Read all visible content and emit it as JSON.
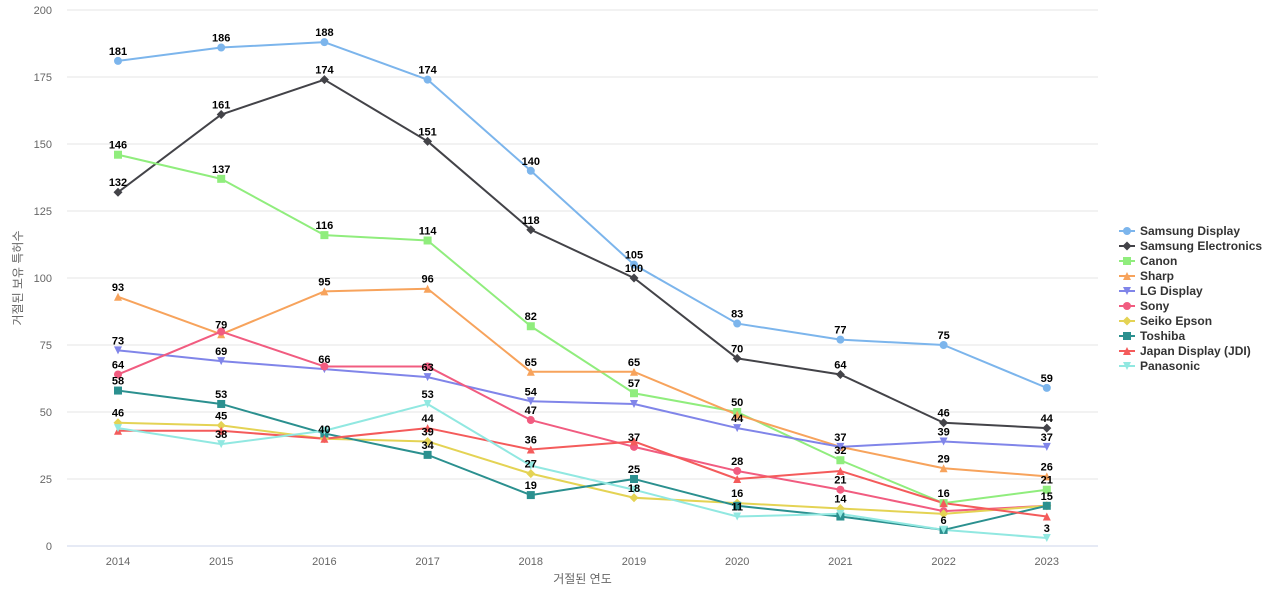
{
  "chart_data": {
    "type": "line",
    "title": "",
    "xlabel": "거절된 연도",
    "ylabel": "거절된 보유 특허수",
    "x": [
      "2014",
      "2015",
      "2016",
      "2017",
      "2018",
      "2019",
      "2020",
      "2021",
      "2022",
      "2023"
    ],
    "ylim": [
      0,
      200
    ],
    "yticks": [
      0,
      25,
      50,
      75,
      100,
      125,
      150,
      175,
      200
    ],
    "grid": true,
    "legend_position": "right",
    "series": [
      {
        "name": "Samsung Display",
        "color": "#7cb5ec",
        "marker": "circle",
        "values": [
          181,
          186,
          188,
          174,
          140,
          105,
          83,
          77,
          75,
          59
        ]
      },
      {
        "name": "Samsung Electronics",
        "color": "#434348",
        "marker": "diamond",
        "values": [
          132,
          161,
          174,
          151,
          118,
          100,
          70,
          64,
          46,
          44
        ]
      },
      {
        "name": "Canon",
        "color": "#90ed7d",
        "marker": "square",
        "values": [
          146,
          137,
          116,
          114,
          82,
          57,
          50,
          32,
          16,
          21
        ]
      },
      {
        "name": "Sharp",
        "color": "#f7a35c",
        "marker": "triangle",
        "values": [
          93,
          79,
          95,
          96,
          65,
          65,
          49,
          37,
          29,
          26
        ]
      },
      {
        "name": "LG Display",
        "color": "#8085e9",
        "marker": "triangle-down",
        "values": [
          73,
          69,
          66,
          63,
          54,
          53,
          44,
          37,
          39,
          37
        ]
      },
      {
        "name": "Sony",
        "color": "#f15c80",
        "marker": "circle",
        "values": [
          64,
          80,
          67,
          67,
          47,
          37,
          28,
          21,
          13,
          15
        ]
      },
      {
        "name": "Seiko Epson",
        "color": "#e4d354",
        "marker": "diamond",
        "values": [
          46,
          45,
          40,
          39,
          27,
          18,
          16,
          14,
          12,
          15
        ]
      },
      {
        "name": "Toshiba",
        "color": "#2b908f",
        "marker": "square",
        "values": [
          58,
          53,
          42,
          34,
          19,
          25,
          15,
          11,
          6,
          15
        ]
      },
      {
        "name": "Japan Display (JDI)",
        "color": "#f45b5b",
        "marker": "triangle",
        "values": [
          43,
          43,
          40,
          44,
          36,
          39,
          25,
          28,
          16,
          11
        ]
      },
      {
        "name": "Panasonic",
        "color": "#91e8e1",
        "marker": "triangle-down",
        "values": [
          44,
          38,
          43,
          53,
          30,
          21,
          11,
          12,
          6,
          3
        ]
      }
    ],
    "data_labels": [
      {
        "x": "2014",
        "text": "181",
        "value": 181
      },
      {
        "x": "2014",
        "text": "146",
        "value": 146
      },
      {
        "x": "2014",
        "text": "132",
        "value": 132
      },
      {
        "x": "2014",
        "text": "93",
        "value": 93
      },
      {
        "x": "2014",
        "text": "73",
        "value": 73
      },
      {
        "x": "2014",
        "text": "64",
        "value": 64
      },
      {
        "x": "2014",
        "text": "58",
        "value": 58
      },
      {
        "x": "2014",
        "text": "46",
        "value": 46
      },
      {
        "x": "2015",
        "text": "186",
        "value": 186
      },
      {
        "x": "2015",
        "text": "161",
        "value": 161
      },
      {
        "x": "2015",
        "text": "137",
        "value": 137
      },
      {
        "x": "2015",
        "text": "79",
        "value": 79
      },
      {
        "x": "2015",
        "text": "69",
        "value": 69
      },
      {
        "x": "2015",
        "text": "53",
        "value": 53
      },
      {
        "x": "2015",
        "text": "45",
        "value": 45
      },
      {
        "x": "2015",
        "text": "38",
        "value": 38
      },
      {
        "x": "2016",
        "text": "188",
        "value": 188
      },
      {
        "x": "2016",
        "text": "174",
        "value": 174
      },
      {
        "x": "2016",
        "text": "116",
        "value": 116
      },
      {
        "x": "2016",
        "text": "95",
        "value": 95
      },
      {
        "x": "2016",
        "text": "66",
        "value": 66
      },
      {
        "x": "2016",
        "text": "40",
        "value": 40
      },
      {
        "x": "2017",
        "text": "174",
        "value": 174
      },
      {
        "x": "2017",
        "text": "151",
        "value": 151
      },
      {
        "x": "2017",
        "text": "114",
        "value": 114
      },
      {
        "x": "2017",
        "text": "96",
        "value": 96
      },
      {
        "x": "2017",
        "text": "63",
        "value": 63
      },
      {
        "x": "2017",
        "text": "53",
        "value": 53
      },
      {
        "x": "2017",
        "text": "44",
        "value": 44
      },
      {
        "x": "2017",
        "text": "39",
        "value": 39
      },
      {
        "x": "2017",
        "text": "34",
        "value": 34
      },
      {
        "x": "2018",
        "text": "140",
        "value": 140
      },
      {
        "x": "2018",
        "text": "118",
        "value": 118
      },
      {
        "x": "2018",
        "text": "82",
        "value": 82
      },
      {
        "x": "2018",
        "text": "65",
        "value": 65
      },
      {
        "x": "2018",
        "text": "54",
        "value": 54
      },
      {
        "x": "2018",
        "text": "47",
        "value": 47
      },
      {
        "x": "2018",
        "text": "36",
        "value": 36
      },
      {
        "x": "2018",
        "text": "27",
        "value": 27
      },
      {
        "x": "2018",
        "text": "19",
        "value": 19
      },
      {
        "x": "2019",
        "text": "105",
        "value": 105
      },
      {
        "x": "2019",
        "text": "100",
        "value": 100
      },
      {
        "x": "2019",
        "text": "65",
        "value": 65
      },
      {
        "x": "2019",
        "text": "57",
        "value": 57
      },
      {
        "x": "2019",
        "text": "37",
        "value": 37
      },
      {
        "x": "2019",
        "text": "25",
        "value": 25
      },
      {
        "x": "2019",
        "text": "18",
        "value": 18
      },
      {
        "x": "2020",
        "text": "83",
        "value": 83
      },
      {
        "x": "2020",
        "text": "70",
        "value": 70
      },
      {
        "x": "2020",
        "text": "50",
        "value": 50
      },
      {
        "x": "2020",
        "text": "44",
        "value": 44
      },
      {
        "x": "2020",
        "text": "28",
        "value": 28
      },
      {
        "x": "2020",
        "text": "16",
        "value": 16
      },
      {
        "x": "2020",
        "text": "11",
        "value": 11
      },
      {
        "x": "2021",
        "text": "77",
        "value": 77
      },
      {
        "x": "2021",
        "text": "64",
        "value": 64
      },
      {
        "x": "2021",
        "text": "37",
        "value": 37
      },
      {
        "x": "2021",
        "text": "32",
        "value": 32
      },
      {
        "x": "2021",
        "text": "21",
        "value": 21
      },
      {
        "x": "2021",
        "text": "14",
        "value": 14
      },
      {
        "x": "2022",
        "text": "75",
        "value": 75
      },
      {
        "x": "2022",
        "text": "46",
        "value": 46
      },
      {
        "x": "2022",
        "text": "39",
        "value": 39
      },
      {
        "x": "2022",
        "text": "29",
        "value": 29
      },
      {
        "x": "2022",
        "text": "16",
        "value": 16
      },
      {
        "x": "2022",
        "text": "6",
        "value": 6
      },
      {
        "x": "2023",
        "text": "59",
        "value": 59
      },
      {
        "x": "2023",
        "text": "44",
        "value": 44
      },
      {
        "x": "2023",
        "text": "37",
        "value": 37
      },
      {
        "x": "2023",
        "text": "26",
        "value": 26
      },
      {
        "x": "2023",
        "text": "21",
        "value": 21
      },
      {
        "x": "2023",
        "text": "15",
        "value": 15
      },
      {
        "x": "2023",
        "text": "3",
        "value": 3
      }
    ]
  }
}
